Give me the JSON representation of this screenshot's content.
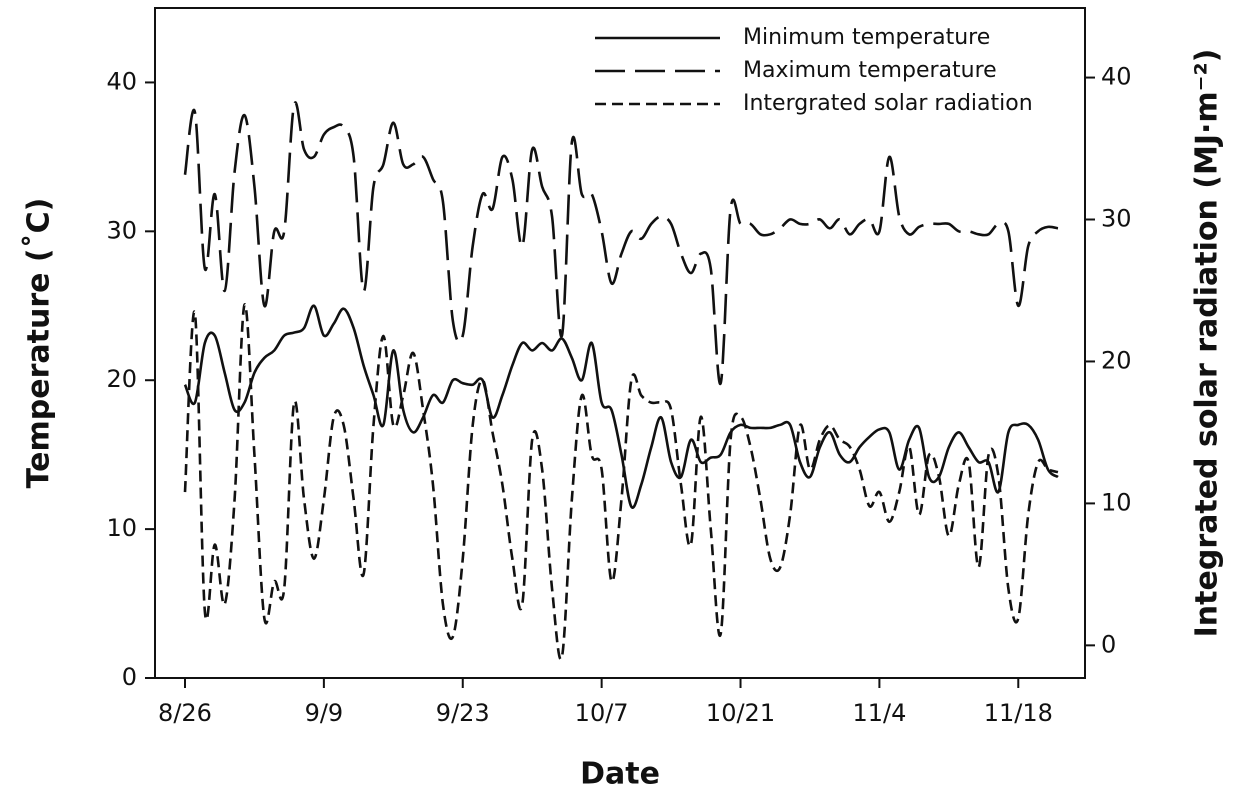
{
  "chart_data": {
    "type": "line",
    "xlabel": "Date",
    "ylabel": "Temperature (˚C)",
    "y2label": "Integrated solar radiation (MJ·m⁻²)",
    "categories": [
      "8/26",
      null,
      null,
      null,
      null,
      null,
      null,
      null,
      null,
      null,
      null,
      null,
      null,
      null,
      "9/9",
      null,
      null,
      null,
      null,
      null,
      null,
      null,
      null,
      null,
      null,
      null,
      null,
      null,
      "9/23",
      null,
      null,
      null,
      null,
      null,
      null,
      null,
      null,
      null,
      null,
      null,
      null,
      null,
      "10/7",
      null,
      null,
      null,
      null,
      null,
      null,
      null,
      null,
      null,
      null,
      null,
      null,
      null,
      "10/21",
      null,
      null,
      null,
      null,
      null,
      null,
      null,
      null,
      null,
      null,
      null,
      null,
      null,
      "11/4",
      null,
      null,
      null,
      null,
      null,
      null,
      null,
      null,
      null,
      null,
      null,
      null,
      null,
      "11/18",
      null,
      null,
      null,
      null
    ],
    "series": [
      {
        "name": "Minimum temperature",
        "color": "#111111",
        "dash": "solid",
        "axis": "y",
        "values": [
          19.7,
          18.5,
          22.5,
          23,
          20.5,
          18,
          18.5,
          20.5,
          21.5,
          22,
          23,
          23.2,
          23.5,
          25,
          23,
          23.8,
          24.8,
          23.5,
          21,
          19,
          17,
          22,
          18,
          16.5,
          17.5,
          19,
          18.5,
          20,
          19.8,
          19.7,
          20,
          17.5,
          19,
          21,
          22.5,
          22,
          22.5,
          22,
          22.8,
          21.5,
          20,
          22.5,
          18.5,
          18,
          15,
          11.5,
          13,
          15.5,
          17.5,
          14.5,
          13.5,
          16,
          14.5,
          14.8,
          15,
          16.5,
          17,
          16.8,
          16.8,
          16.8,
          17,
          17,
          14.5,
          13.5,
          15.5,
          16.5,
          15,
          14.5,
          15.5,
          16.2,
          16.7,
          16.5,
          14,
          16,
          16.8,
          13.5,
          13.5,
          15.5,
          16.5,
          15.5,
          14.5,
          14.5,
          12.5,
          16.5,
          17,
          17,
          16,
          14,
          13.5
        ]
      },
      {
        "name": "Maximum temperature",
        "color": "#111111",
        "dash": "long",
        "axis": "y",
        "values": [
          33.8,
          38,
          27.5,
          32.5,
          26,
          34,
          37.8,
          33,
          25,
          30,
          30,
          38.5,
          35.5,
          35,
          36.5,
          37,
          37,
          35,
          26,
          33,
          34.5,
          37.3,
          34.5,
          34.5,
          35,
          33.5,
          32,
          24,
          23,
          29,
          32.5,
          31.5,
          35,
          33.5,
          29,
          35.5,
          33,
          31,
          23,
          36,
          32.5,
          32.5,
          30,
          26.5,
          28.5,
          30,
          29.5,
          30.5,
          31,
          30.5,
          28.5,
          27.2,
          28.5,
          27.5,
          19.8,
          31.5,
          30.5,
          30.5,
          29.8,
          29.8,
          30.2,
          30.8,
          30.5,
          30.5,
          30.8,
          30.2,
          30.8,
          29.8,
          30.5,
          30.8,
          30,
          35,
          31,
          29.8,
          30.3,
          30.5,
          30.5,
          30.5,
          30,
          30,
          29.8,
          29.8,
          30.5,
          30,
          25,
          29,
          30,
          30.3,
          30.2
        ]
      },
      {
        "name": "Intergrated solar radiation",
        "color": "#111111",
        "dash": "short",
        "axis": "y2",
        "values": [
          10.8,
          23.4,
          2.4,
          7.1,
          2.9,
          10.3,
          24.0,
          13.4,
          1.9,
          4.5,
          4.0,
          17.1,
          10.3,
          6.1,
          10.3,
          16.1,
          15.5,
          10.3,
          5.0,
          15.5,
          21.8,
          15.5,
          17.6,
          20.6,
          16.6,
          11.3,
          2.9,
          0.6,
          6.1,
          15.5,
          18.7,
          15.0,
          11.3,
          6.1,
          2.9,
          14.5,
          12.4,
          4.0,
          -0.8,
          10.3,
          17.6,
          13.4,
          12.4,
          4.5,
          10.3,
          18.7,
          17.6,
          17.1,
          17.1,
          16.6,
          11.3,
          7.1,
          16.1,
          8.2,
          0.8,
          14.5,
          16.1,
          14.0,
          10.3,
          6.1,
          5.5,
          9.2,
          15.5,
          12.4,
          14.5,
          15.5,
          14.5,
          14.0,
          12.4,
          9.8,
          10.8,
          8.7,
          10.8,
          14.0,
          9.2,
          13.4,
          11.9,
          7.7,
          11.3,
          12.9,
          5.5,
          13.4,
          11.9,
          4.0,
          1.9,
          9.2,
          12.9,
          12.4,
          12.2
        ]
      }
    ],
    "ylim": [
      0,
      45
    ],
    "yticks": [
      0,
      10,
      20,
      30,
      40
    ],
    "y2lim": [
      -2.3,
      44.9
    ],
    "y2ticks": [
      0,
      10,
      20,
      30,
      40
    ],
    "legend": "upper right",
    "grid": false
  }
}
